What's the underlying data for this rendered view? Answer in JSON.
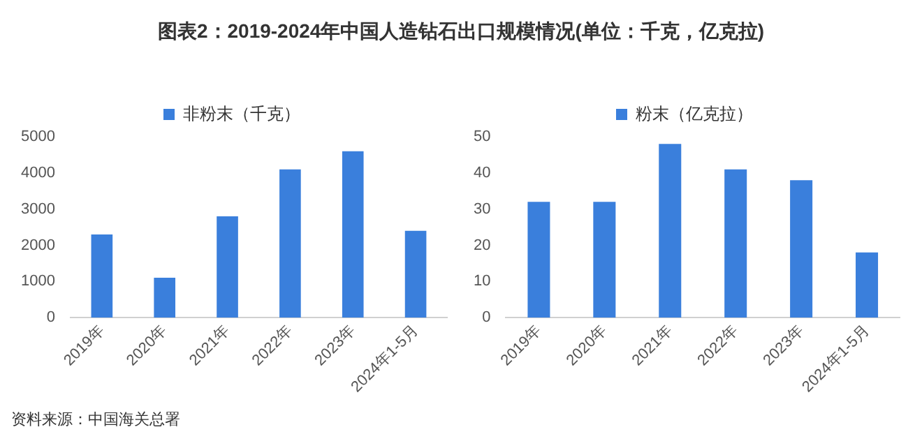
{
  "chart_data": [
    {
      "type": "bar",
      "title": "图表2：2019-2024年中国人造钻石出口规模情况(单位：千克，亿克拉)",
      "annotations": [
        "资料来源：中国海关总署"
      ],
      "categories": [
        "2019年",
        "2020年",
        "2021年",
        "2022年",
        "2023年",
        "2024年1-5月"
      ],
      "series": [
        {
          "name": "非粉末（千克）",
          "color": "#3a7fdc",
          "values": [
            2300,
            1100,
            2800,
            4100,
            4600,
            2400
          ]
        }
      ],
      "ylim": [
        0,
        5000
      ],
      "yticks": [
        0,
        1000,
        2000,
        3000,
        4000,
        5000
      ],
      "legend": "top"
    },
    {
      "type": "bar",
      "categories": [
        "2019年",
        "2020年",
        "2021年",
        "2022年",
        "2023年",
        "2024年1-5月"
      ],
      "series": [
        {
          "name": "粉末（亿克拉）",
          "color": "#3a7fdc",
          "values": [
            32,
            32,
            48,
            41,
            38,
            18
          ]
        }
      ],
      "ylim": [
        0,
        50
      ],
      "yticks": [
        0,
        10,
        20,
        30,
        40,
        50
      ],
      "legend": "top"
    }
  ]
}
